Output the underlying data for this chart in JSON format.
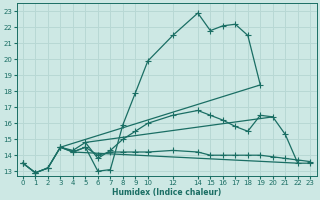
{
  "xlabel": "Humidex (Indice chaleur)",
  "bg_color": "#cde8e4",
  "line_color": "#1a6e64",
  "grid_color": "#b8d8d4",
  "s1x": [
    0,
    1,
    2,
    3,
    4,
    5,
    6,
    7,
    8,
    9,
    10,
    12,
    14,
    15,
    16,
    17,
    18,
    19
  ],
  "s1y": [
    13.5,
    12.9,
    13.2,
    14.5,
    14.2,
    14.5,
    13.0,
    13.1,
    15.9,
    17.9,
    19.9,
    21.5,
    22.9,
    21.8,
    22.1,
    22.2,
    21.5,
    18.4
  ],
  "s2x": [
    0,
    1,
    2,
    3,
    4,
    5,
    6,
    7,
    8,
    9,
    10,
    12,
    14,
    15,
    16,
    17,
    18,
    19,
    20,
    21,
    22,
    23
  ],
  "s2y": [
    13.5,
    12.9,
    13.2,
    14.5,
    14.2,
    14.5,
    14.0,
    14.2,
    14.2,
    14.2,
    14.2,
    14.3,
    14.2,
    14.0,
    14.0,
    14.0,
    14.0,
    14.0,
    13.9,
    13.8,
    13.7,
    13.6
  ],
  "s3x": [
    0,
    1,
    2,
    3,
    4,
    5,
    6,
    7,
    8,
    9,
    10,
    12,
    14,
    15,
    16,
    17,
    18,
    19,
    20,
    21,
    22,
    23
  ],
  "s3y": [
    13.5,
    12.9,
    13.2,
    14.5,
    14.3,
    14.8,
    13.8,
    14.3,
    15.0,
    15.5,
    16.0,
    16.5,
    16.8,
    16.5,
    16.2,
    15.8,
    15.5,
    16.5,
    16.4,
    15.3,
    13.5,
    13.5
  ],
  "diag1x": [
    3,
    19
  ],
  "diag1y": [
    14.5,
    18.4
  ],
  "diag2x": [
    5,
    20
  ],
  "diag2y": [
    14.8,
    16.4
  ],
  "diag3x": [
    4,
    22
  ],
  "diag3y": [
    14.2,
    13.5
  ],
  "xlim": [
    -0.5,
    23.5
  ],
  "ylim": [
    12.7,
    23.5
  ],
  "xticks": [
    0,
    1,
    2,
    3,
    4,
    5,
    6,
    7,
    8,
    9,
    10,
    12,
    14,
    15,
    16,
    17,
    18,
    19,
    20,
    21,
    22,
    23
  ],
  "yticks": [
    13,
    14,
    15,
    16,
    17,
    18,
    19,
    20,
    21,
    22,
    23
  ],
  "figsize": [
    3.2,
    2.0
  ],
  "dpi": 100
}
